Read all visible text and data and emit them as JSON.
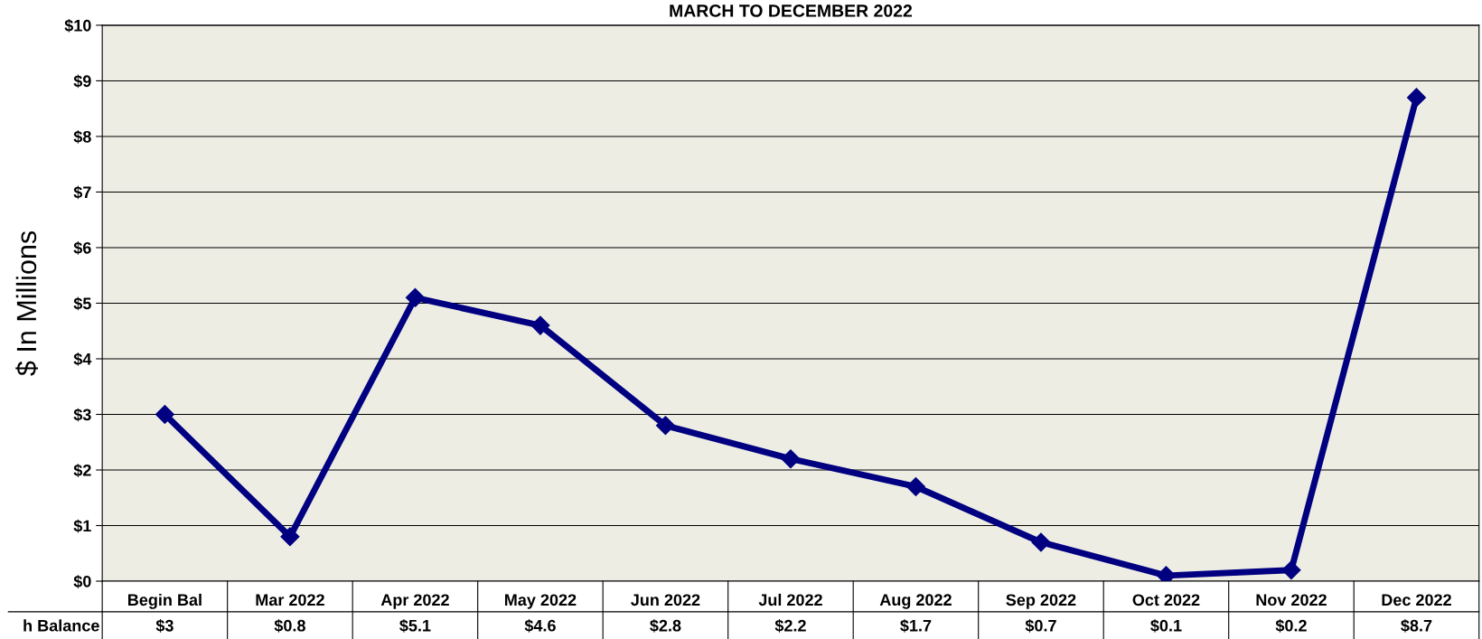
{
  "chart_data": {
    "type": "line",
    "title": "MARCH TO DECEMBER 2022",
    "ylabel": "$ In Millions",
    "categories": [
      "Begin Bal",
      "Mar 2022",
      "Apr 2022",
      "May 2022",
      "Jun 2022",
      "Jul 2022",
      "Aug 2022",
      "Sep 2022",
      "Oct 2022",
      "Nov 2022",
      "Dec 2022"
    ],
    "series": [
      {
        "name": "h Balance",
        "color": "#000080",
        "values": [
          3,
          0.8,
          5.1,
          4.6,
          2.8,
          2.2,
          1.7,
          0.7,
          0.1,
          0.2,
          8.7
        ],
        "value_labels": [
          "$3",
          "$0.8",
          "$5.1",
          "$4.6",
          "$2.8",
          "$2.2",
          "$1.7",
          "$0.7",
          "$0.1",
          "$0.2",
          "$8.7"
        ]
      }
    ],
    "ylim": [
      0,
      10
    ],
    "yticks": [
      {
        "value": 0,
        "label": "$0"
      },
      {
        "value": 1,
        "label": "$1"
      },
      {
        "value": 2,
        "label": "$2"
      },
      {
        "value": 3,
        "label": "$3"
      },
      {
        "value": 4,
        "label": "$4"
      },
      {
        "value": 5,
        "label": "$5"
      },
      {
        "value": 6,
        "label": "$6"
      },
      {
        "value": 7,
        "label": "$7"
      },
      {
        "value": 8,
        "label": "$8"
      },
      {
        "value": 9,
        "label": "$9"
      },
      {
        "value": 10,
        "label": "$10"
      }
    ],
    "grid": "y",
    "marker": "diamond",
    "line_style": "solid",
    "legend": false
  }
}
